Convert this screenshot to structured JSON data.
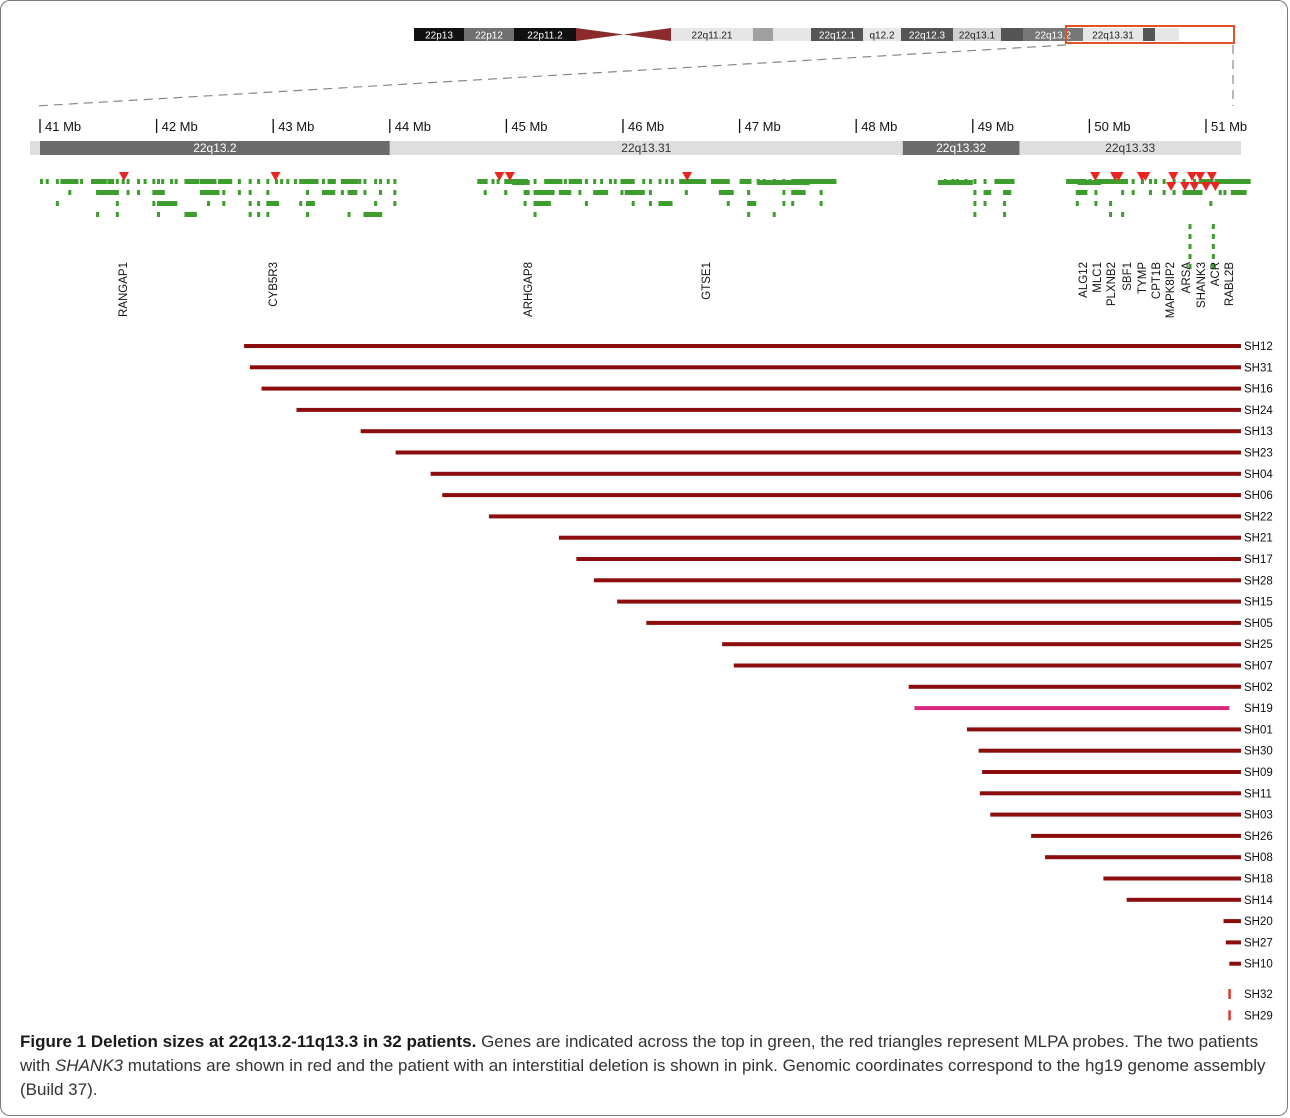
{
  "chart_data": {
    "type": "bar",
    "ideogram_bands": [
      {
        "label": "22p13",
        "color": "#111111"
      },
      {
        "label": "22p12",
        "color": "#707070"
      },
      {
        "label": "22p11.2",
        "color": "#111111"
      },
      {
        "label": "",
        "color": "centromere"
      },
      {
        "label": "22q11.21",
        "color": "#e6e6e6"
      },
      {
        "label": "",
        "color": "#a0a0a0"
      },
      {
        "label": "",
        "color": "#e6e6e6"
      },
      {
        "label": "22q12.1",
        "color": "#555555"
      },
      {
        "label": "q12.2",
        "color": "#e6e6e6"
      },
      {
        "label": "22q12.3",
        "color": "#555555"
      },
      {
        "label": "22q13.1",
        "color": "#d0d0d0"
      },
      {
        "label": "",
        "color": "#555555"
      },
      {
        "label": "22q13.2",
        "color": "#777777"
      },
      {
        "label": "22q13.31",
        "color": "#e6e6e6"
      },
      {
        "label": "",
        "color": "#555555"
      },
      {
        "label": "",
        "color": "#e6e6e6"
      }
    ],
    "x_axis": {
      "unit": "Mb",
      "min": 41,
      "max": 51,
      "ticks": [
        "41 Mb",
        "42 Mb",
        "43 Mb",
        "44 Mb",
        "45 Mb",
        "46 Mb",
        "47 Mb",
        "48 Mb",
        "49 Mb",
        "50 Mb",
        "51 Mb"
      ]
    },
    "cytobands": [
      {
        "label": "22q13.2",
        "start": 40.9,
        "end": 44.0,
        "color": "#6b6b6b"
      },
      {
        "label": "22q13.31",
        "start": 44.0,
        "end": 48.4,
        "color": "#dedede"
      },
      {
        "label": "22q13.32",
        "start": 48.4,
        "end": 49.4,
        "color": "#6b6b6b"
      },
      {
        "label": "22q13.33",
        "start": 49.4,
        "end": 51.3,
        "color": "#dedede"
      }
    ],
    "genes": [
      "RANGAP1",
      "CYB5R3",
      "ARHGAP8",
      "GTSE1",
      "ALG12",
      "MLC1",
      "PLXNB2",
      "SBF1",
      "TYMP",
      "CPT1B",
      "MAPK8IP2",
      "ARSA",
      "SHANK3",
      "ACR",
      "RABL2B"
    ],
    "gene_positions": [
      41.7,
      43.0,
      45.0,
      46.55,
      50.0,
      50.1,
      50.2,
      50.32,
      50.45,
      50.55,
      50.65,
      50.75,
      50.85,
      50.95,
      51.05
    ],
    "mlpa_probe_positions": [
      41.72,
      43.02,
      44.94,
      45.03,
      46.55,
      50.05,
      50.22,
      50.25,
      50.45,
      50.48,
      50.7,
      50.72,
      50.82,
      50.88,
      50.9,
      50.95,
      51.0,
      51.05,
      51.08
    ],
    "series": [
      {
        "name": "SH12",
        "start": 42.75,
        "end": 51.3,
        "color": "#8b0d0d"
      },
      {
        "name": "SH31",
        "start": 42.8,
        "end": 51.3,
        "color": "#8b0d0d"
      },
      {
        "name": "SH16",
        "start": 42.9,
        "end": 51.3,
        "color": "#8b0d0d"
      },
      {
        "name": "SH24",
        "start": 43.2,
        "end": 51.3,
        "color": "#8b0d0d"
      },
      {
        "name": "SH13",
        "start": 43.75,
        "end": 51.3,
        "color": "#8b0d0d"
      },
      {
        "name": "SH23",
        "start": 44.05,
        "end": 51.3,
        "color": "#8b0d0d"
      },
      {
        "name": "SH04",
        "start": 44.35,
        "end": 51.3,
        "color": "#8b0d0d"
      },
      {
        "name": "SH06",
        "start": 44.45,
        "end": 51.3,
        "color": "#8b0d0d"
      },
      {
        "name": "SH22",
        "start": 44.85,
        "end": 51.3,
        "color": "#8b0d0d"
      },
      {
        "name": "SH21",
        "start": 45.45,
        "end": 51.3,
        "color": "#8b0d0d"
      },
      {
        "name": "SH17",
        "start": 45.6,
        "end": 51.3,
        "color": "#8b0d0d"
      },
      {
        "name": "SH28",
        "start": 45.75,
        "end": 51.3,
        "color": "#8b0d0d"
      },
      {
        "name": "SH15",
        "start": 45.95,
        "end": 51.3,
        "color": "#8b0d0d"
      },
      {
        "name": "SH05",
        "start": 46.2,
        "end": 51.3,
        "color": "#8b0d0d"
      },
      {
        "name": "SH25",
        "start": 46.85,
        "end": 51.3,
        "color": "#8b0d0d"
      },
      {
        "name": "SH07",
        "start": 46.95,
        "end": 51.3,
        "color": "#8b0d0d"
      },
      {
        "name": "SH02",
        "start": 48.45,
        "end": 51.3,
        "color": "#8b0d0d"
      },
      {
        "name": "SH19",
        "start": 48.5,
        "end": 51.2,
        "color": "#d9267f"
      },
      {
        "name": "SH01",
        "start": 48.95,
        "end": 51.3,
        "color": "#8b0d0d"
      },
      {
        "name": "SH30",
        "start": 49.05,
        "end": 51.3,
        "color": "#8b0d0d"
      },
      {
        "name": "SH09",
        "start": 49.08,
        "end": 51.3,
        "color": "#8b0d0d"
      },
      {
        "name": "SH11",
        "start": 49.06,
        "end": 51.3,
        "color": "#8b0d0d"
      },
      {
        "name": "SH03",
        "start": 49.15,
        "end": 51.3,
        "color": "#8b0d0d"
      },
      {
        "name": "SH26",
        "start": 49.5,
        "end": 51.3,
        "color": "#8b0d0d"
      },
      {
        "name": "SH08",
        "start": 49.62,
        "end": 51.3,
        "color": "#8b0d0d"
      },
      {
        "name": "SH18",
        "start": 50.12,
        "end": 51.3,
        "color": "#8b0d0d"
      },
      {
        "name": "SH14",
        "start": 50.32,
        "end": 51.3,
        "color": "#8b0d0d"
      },
      {
        "name": "SH20",
        "start": 51.15,
        "end": 51.3,
        "color": "#8b0d0d"
      },
      {
        "name": "SH27",
        "start": 51.17,
        "end": 51.3,
        "color": "#8b0d0d"
      },
      {
        "name": "SH10",
        "start": 51.2,
        "end": 51.3,
        "color": "#8b0d0d"
      },
      {
        "name": "SH32",
        "start": 51.2,
        "end": 51.2,
        "color": "#e8322c"
      },
      {
        "name": "SH29",
        "start": 51.2,
        "end": 51.2,
        "color": "#e8322c"
      }
    ]
  },
  "caption": {
    "title": "Figure 1 Deletion sizes at 22q13.2-11q13.3 in 32 patients.",
    "text_part1": " Genes are indicated across the top in green, the red triangles represent MLPA probes. The two patients with ",
    "text_italic": "SHANK3",
    "text_part2": " mutations are shown in red and the patient with an interstitial deletion is shown in pink. Genomic coordinates correspond to the hg19 genome assembly (Build 37)."
  },
  "colors": {
    "gene": "#3d9e2e",
    "probe": "#e8261f",
    "deletion": "#8b0d0d",
    "highlight_box": "#e0522a"
  }
}
